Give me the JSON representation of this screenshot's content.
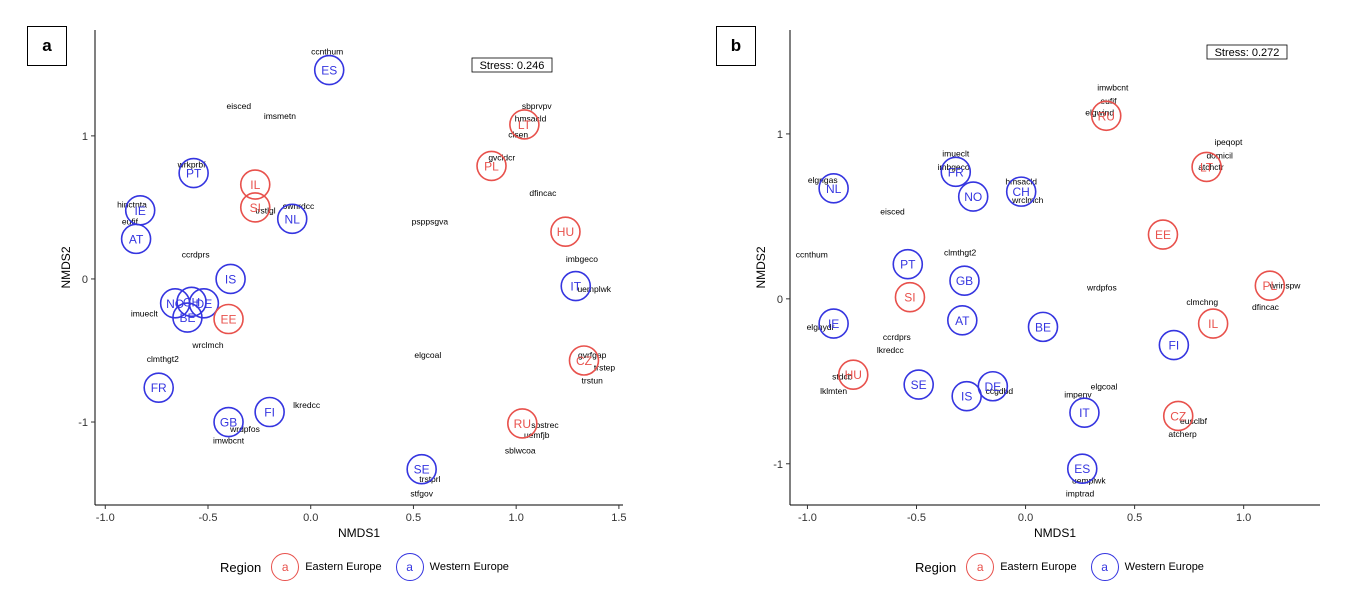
{
  "colors": {
    "eastern": "#E8514C",
    "western": "#3535E0"
  },
  "legend": {
    "title": "Region",
    "key_glyph": "a",
    "entries": [
      {
        "group": "eastern",
        "label": "Eastern Europe"
      },
      {
        "group": "western",
        "label": "Western Europe"
      }
    ]
  },
  "chart_data": [
    {
      "type": "scatter",
      "panel_label": "a",
      "xlabel": "NMDS1",
      "ylabel": "NMDS2",
      "xlim": [
        -1.05,
        1.52
      ],
      "ylim": [
        -1.58,
        1.74
      ],
      "xticks": [
        -1.0,
        -0.5,
        0.0,
        0.5,
        1.0,
        1.5
      ],
      "xtick_labels": [
        "-1.0",
        "-0.5",
        "0.0",
        "0.5",
        "1.0",
        "1.5"
      ],
      "yticks": [
        -1,
        0,
        1
      ],
      "ytick_labels": [
        "-1",
        "0",
        "1"
      ],
      "grid": false,
      "stress_label": "Stress:  0.246",
      "countries": [
        {
          "label": "ES",
          "x": 0.09,
          "y": 1.46,
          "group": "western"
        },
        {
          "label": "PT",
          "x": -0.57,
          "y": 0.74,
          "group": "western"
        },
        {
          "label": "IL",
          "x": -0.27,
          "y": 0.66,
          "group": "eastern"
        },
        {
          "label": "SI",
          "x": -0.27,
          "y": 0.5,
          "group": "eastern"
        },
        {
          "label": "NL",
          "x": -0.09,
          "y": 0.42,
          "group": "western"
        },
        {
          "label": "IE",
          "x": -0.83,
          "y": 0.48,
          "group": "western"
        },
        {
          "label": "AT",
          "x": -0.85,
          "y": 0.28,
          "group": "western"
        },
        {
          "label": "LT",
          "x": 1.04,
          "y": 1.08,
          "group": "eastern"
        },
        {
          "label": "PL",
          "x": 0.88,
          "y": 0.79,
          "group": "eastern"
        },
        {
          "label": "HU",
          "x": 1.24,
          "y": 0.33,
          "group": "eastern"
        },
        {
          "label": "IS",
          "x": -0.39,
          "y": 0.0,
          "group": "western"
        },
        {
          "label": "NO",
          "x": -0.66,
          "y": -0.17,
          "group": "western"
        },
        {
          "label": "CH",
          "x": -0.58,
          "y": -0.16,
          "group": "western"
        },
        {
          "label": "DE",
          "x": -0.52,
          "y": -0.17,
          "group": "western"
        },
        {
          "label": "BE",
          "x": -0.6,
          "y": -0.27,
          "group": "western"
        },
        {
          "label": "EE",
          "x": -0.4,
          "y": -0.28,
          "group": "eastern"
        },
        {
          "label": "IT",
          "x": 1.29,
          "y": -0.05,
          "group": "western"
        },
        {
          "label": "CZ",
          "x": 1.33,
          "y": -0.57,
          "group": "eastern"
        },
        {
          "label": "FR",
          "x": -0.74,
          "y": -0.76,
          "group": "western"
        },
        {
          "label": "GB",
          "x": -0.4,
          "y": -1.0,
          "group": "western"
        },
        {
          "label": "FI",
          "x": -0.2,
          "y": -0.93,
          "group": "western"
        },
        {
          "label": "RU",
          "x": 1.03,
          "y": -1.01,
          "group": "eastern"
        },
        {
          "label": "SE",
          "x": 0.54,
          "y": -1.33,
          "group": "western"
        }
      ],
      "variables": [
        {
          "label": "ccnthum",
          "x": 0.08,
          "y": 1.59
        },
        {
          "label": "eisced",
          "x": -0.35,
          "y": 1.21
        },
        {
          "label": "imsmetn",
          "x": -0.15,
          "y": 1.14
        },
        {
          "label": "sbprvpv",
          "x": 1.1,
          "y": 1.21
        },
        {
          "label": "hmsacld",
          "x": 1.07,
          "y": 1.12
        },
        {
          "label": "clsen",
          "x": 1.01,
          "y": 1.01
        },
        {
          "label": "gvcldcr",
          "x": 0.93,
          "y": 0.85
        },
        {
          "label": "wrkprbf",
          "x": -0.58,
          "y": 0.8
        },
        {
          "label": "dfincac",
          "x": 1.13,
          "y": 0.6
        },
        {
          "label": "hinctnta",
          "x": -0.87,
          "y": 0.52
        },
        {
          "label": "ownrdcc",
          "x": -0.06,
          "y": 0.51
        },
        {
          "label": "eufif",
          "x": -0.88,
          "y": 0.4
        },
        {
          "label": "trstlgl",
          "x": -0.22,
          "y": 0.48
        },
        {
          "label": "psppsgva",
          "x": 0.58,
          "y": 0.4
        },
        {
          "label": "ccrdprs",
          "x": -0.56,
          "y": 0.17
        },
        {
          "label": "imbgeco",
          "x": 1.32,
          "y": 0.14
        },
        {
          "label": "uemplwk",
          "x": 1.38,
          "y": -0.07
        },
        {
          "label": "imueclt",
          "x": -0.81,
          "y": -0.24
        },
        {
          "label": "wrclmch",
          "x": -0.5,
          "y": -0.46
        },
        {
          "label": "elgcoal",
          "x": 0.57,
          "y": -0.53
        },
        {
          "label": "clmthgt2",
          "x": -0.72,
          "y": -0.56
        },
        {
          "label": "gvrfgap",
          "x": 1.37,
          "y": -0.53
        },
        {
          "label": "trstep",
          "x": 1.43,
          "y": -0.62
        },
        {
          "label": "trstun",
          "x": 1.37,
          "y": -0.71
        },
        {
          "label": "lkredcc",
          "x": -0.02,
          "y": -0.88
        },
        {
          "label": "sbstrec",
          "x": 1.14,
          "y": -1.02
        },
        {
          "label": "uemfjb",
          "x": 1.1,
          "y": -1.09
        },
        {
          "label": "sblwcoa",
          "x": 1.02,
          "y": -1.2
        },
        {
          "label": "wrdpfos",
          "x": -0.32,
          "y": -1.05
        },
        {
          "label": "imwbcnt",
          "x": -0.4,
          "y": -1.13
        },
        {
          "label": "trstprl",
          "x": 0.58,
          "y": -1.4
        },
        {
          "label": "stfgov",
          "x": 0.54,
          "y": -1.5
        }
      ]
    },
    {
      "type": "scatter",
      "panel_label": "b",
      "xlabel": "NMDS1",
      "ylabel": "NMDS2",
      "xlim": [
        -1.08,
        1.35
      ],
      "ylim": [
        -1.25,
        1.63
      ],
      "xticks": [
        -1.0,
        -0.5,
        0.0,
        0.5,
        1.0
      ],
      "xtick_labels": [
        "-1.0",
        "-0.5",
        "0.0",
        "0.5",
        "1.0"
      ],
      "yticks": [
        -1,
        0,
        1
      ],
      "ytick_labels": [
        "-1",
        "0",
        "1"
      ],
      "grid": false,
      "stress_label": "Stress:  0.272",
      "countries": [
        {
          "label": "RU",
          "x": 0.37,
          "y": 1.11,
          "group": "eastern"
        },
        {
          "label": "LT",
          "x": 0.83,
          "y": 0.8,
          "group": "eastern"
        },
        {
          "label": "FR",
          "x": -0.32,
          "y": 0.77,
          "group": "western"
        },
        {
          "label": "NL",
          "x": -0.88,
          "y": 0.67,
          "group": "western"
        },
        {
          "label": "NO",
          "x": -0.24,
          "y": 0.62,
          "group": "western"
        },
        {
          "label": "CH",
          "x": -0.02,
          "y": 0.65,
          "group": "western"
        },
        {
          "label": "EE",
          "x": 0.63,
          "y": 0.39,
          "group": "eastern"
        },
        {
          "label": "PT",
          "x": -0.54,
          "y": 0.21,
          "group": "western"
        },
        {
          "label": "GB",
          "x": -0.28,
          "y": 0.11,
          "group": "western"
        },
        {
          "label": "SI",
          "x": -0.53,
          "y": 0.01,
          "group": "eastern"
        },
        {
          "label": "PL",
          "x": 1.12,
          "y": 0.08,
          "group": "eastern"
        },
        {
          "label": "IE",
          "x": -0.88,
          "y": -0.15,
          "group": "western"
        },
        {
          "label": "AT",
          "x": -0.29,
          "y": -0.13,
          "group": "western"
        },
        {
          "label": "BE",
          "x": 0.08,
          "y": -0.17,
          "group": "western"
        },
        {
          "label": "IL",
          "x": 0.86,
          "y": -0.15,
          "group": "eastern"
        },
        {
          "label": "FI",
          "x": 0.68,
          "y": -0.28,
          "group": "western"
        },
        {
          "label": "HU",
          "x": -0.79,
          "y": -0.46,
          "group": "eastern"
        },
        {
          "label": "SE",
          "x": -0.49,
          "y": -0.52,
          "group": "western"
        },
        {
          "label": "DE",
          "x": -0.15,
          "y": -0.53,
          "group": "western"
        },
        {
          "label": "IS",
          "x": -0.27,
          "y": -0.59,
          "group": "western"
        },
        {
          "label": "IT",
          "x": 0.27,
          "y": -0.69,
          "group": "western"
        },
        {
          "label": "CZ",
          "x": 0.7,
          "y": -0.71,
          "group": "eastern"
        },
        {
          "label": "ES",
          "x": 0.26,
          "y": -1.03,
          "group": "western"
        }
      ],
      "variables": [
        {
          "label": "imwbcnt",
          "x": 0.4,
          "y": 1.28
        },
        {
          "label": "eufif",
          "x": 0.38,
          "y": 1.2
        },
        {
          "label": "elgwind",
          "x": 0.34,
          "y": 1.13
        },
        {
          "label": "ipeqopt",
          "x": 0.93,
          "y": 0.95
        },
        {
          "label": "domicil",
          "x": 0.89,
          "y": 0.87
        },
        {
          "label": "atchctr",
          "x": 0.85,
          "y": 0.8
        },
        {
          "label": "imueclt",
          "x": -0.32,
          "y": 0.88
        },
        {
          "label": "imbgeco",
          "x": -0.33,
          "y": 0.8
        },
        {
          "label": "hmsacld",
          "x": -0.02,
          "y": 0.71
        },
        {
          "label": "elgngas",
          "x": -0.93,
          "y": 0.72
        },
        {
          "label": "wrclmch",
          "x": 0.01,
          "y": 0.6
        },
        {
          "label": "eisced",
          "x": -0.61,
          "y": 0.53
        },
        {
          "label": "ccnthum",
          "x": -0.98,
          "y": 0.27
        },
        {
          "label": "clmthgt2",
          "x": -0.3,
          "y": 0.28
        },
        {
          "label": "wrdpfos",
          "x": 0.35,
          "y": 0.07
        },
        {
          "label": "wrinspw",
          "x": 1.19,
          "y": 0.08
        },
        {
          "label": "clmchng",
          "x": 0.81,
          "y": -0.02
        },
        {
          "label": "dfincac",
          "x": 1.1,
          "y": -0.05
        },
        {
          "label": "elghydr",
          "x": -0.94,
          "y": -0.17
        },
        {
          "label": "ccrdprs",
          "x": -0.59,
          "y": -0.23
        },
        {
          "label": "lkredcc",
          "x": -0.62,
          "y": -0.31
        },
        {
          "label": "stdcb",
          "x": -0.84,
          "y": -0.47
        },
        {
          "label": "lklmten",
          "x": -0.88,
          "y": -0.56
        },
        {
          "label": "elgcoal",
          "x": 0.36,
          "y": -0.53
        },
        {
          "label": "impenv",
          "x": 0.24,
          "y": -0.58
        },
        {
          "label": "eusclbf",
          "x": 0.77,
          "y": -0.74
        },
        {
          "label": "atcherp",
          "x": 0.72,
          "y": -0.82
        },
        {
          "label": "uemplwk",
          "x": 0.29,
          "y": -1.1
        },
        {
          "label": "imptrad",
          "x": 0.25,
          "y": -1.18
        },
        {
          "label": "ccgdbd",
          "x": -0.12,
          "y": -0.56
        }
      ]
    }
  ]
}
